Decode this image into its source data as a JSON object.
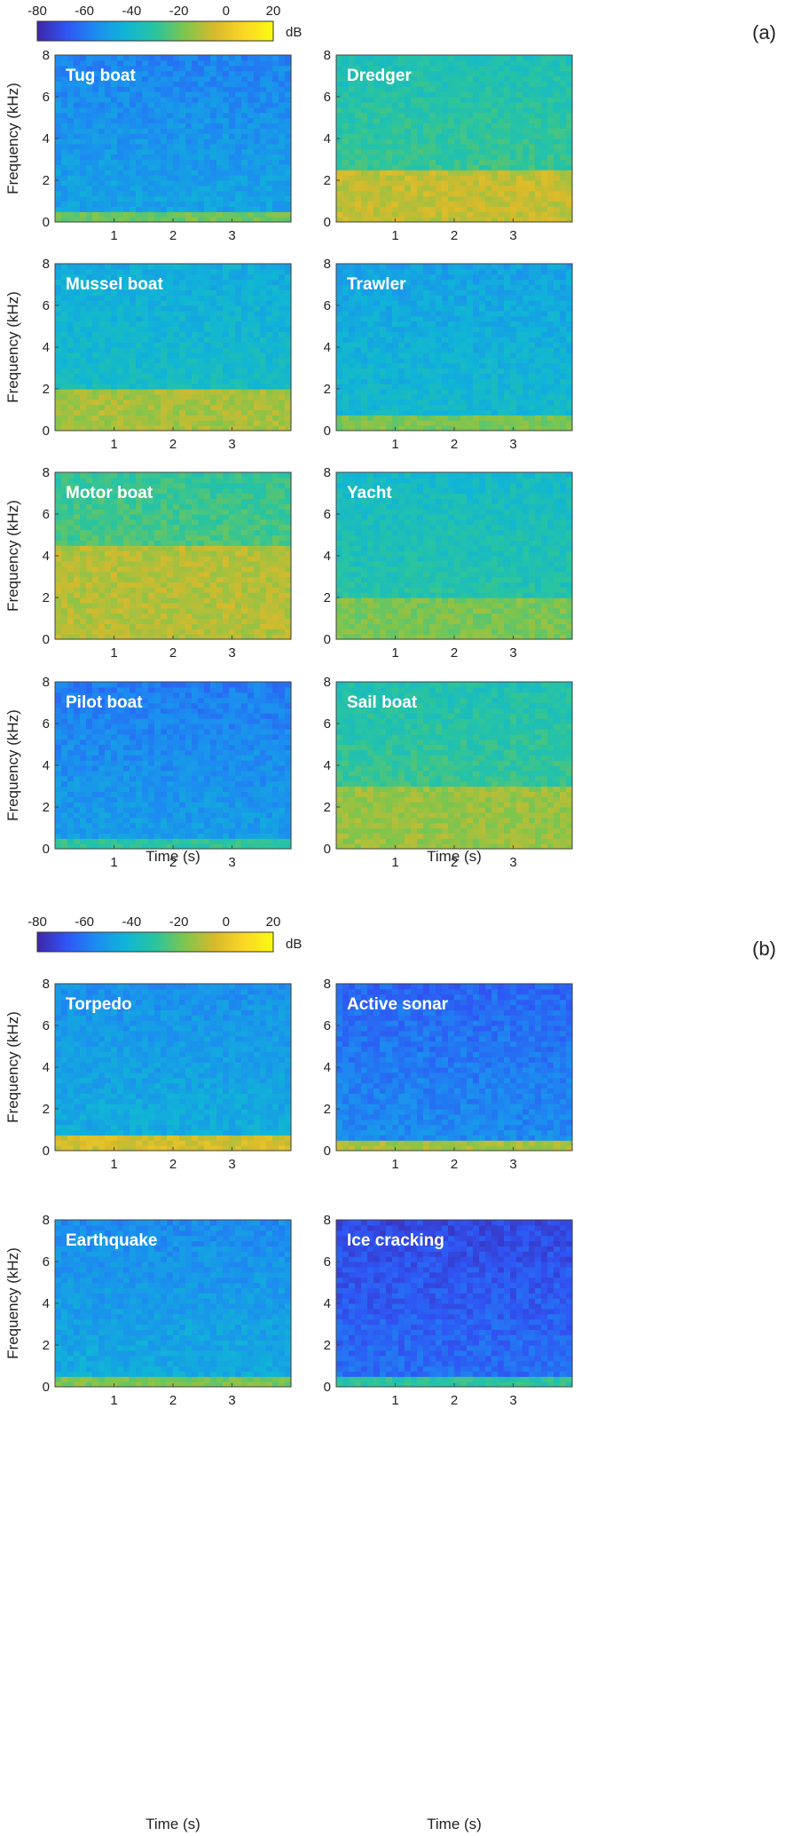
{
  "colormap": {
    "name": "parula",
    "stops": [
      "#3e26a8",
      "#2f55f4",
      "#1c8df0",
      "#10b5d6",
      "#29c4a0",
      "#7ec54d",
      "#d7ba2c",
      "#fbd626",
      "#f9fb0e"
    ]
  },
  "chart_data": [
    {
      "group": "(a)",
      "type": "heatmap",
      "colorbar": {
        "ticks": [
          "-80",
          "-60",
          "-40",
          "-20",
          "0",
          "20"
        ],
        "unit": "dB",
        "range": [
          -80,
          20
        ]
      },
      "xlabel": "Time (s)",
      "ylabel": "Frequency (kHz)",
      "x_ticks": [
        "1",
        "2",
        "3"
      ],
      "y_ticks": [
        "0",
        "2",
        "4",
        "6",
        "8"
      ],
      "xlim": [
        0,
        4
      ],
      "ylim": [
        0,
        8
      ],
      "spectrograms": [
        {
          "label": "Tug boat",
          "level_db": -48,
          "low_band_db": -20,
          "low_band_khz": 0.6
        },
        {
          "label": "Dredger",
          "level_db": -28,
          "low_band_db": -8,
          "low_band_khz": 2.5
        },
        {
          "label": "Mussel boat",
          "level_db": -38,
          "low_band_db": -12,
          "low_band_khz": 2.0
        },
        {
          "label": "Trawler",
          "level_db": -40,
          "low_band_db": -18,
          "low_band_khz": 0.8
        },
        {
          "label": "Motor boat",
          "level_db": -25,
          "low_band_db": -10,
          "low_band_khz": 4.5
        },
        {
          "label": "Yacht",
          "level_db": -32,
          "low_band_db": -18,
          "low_band_khz": 2.0
        },
        {
          "label": "Pilot boat",
          "level_db": -50,
          "low_band_db": -30,
          "low_band_khz": 0.5
        },
        {
          "label": "Sail boat",
          "level_db": -28,
          "low_band_db": -14,
          "low_band_khz": 3.0
        }
      ]
    },
    {
      "group": "(b)",
      "type": "heatmap",
      "colorbar": {
        "ticks": [
          "-80",
          "-60",
          "-40",
          "-20",
          "0",
          "20"
        ],
        "unit": "dB",
        "range": [
          -80,
          20
        ]
      },
      "xlabel": "Time (s)",
      "ylabel": "Frequency (kHz)",
      "x_ticks": [
        "1",
        "2",
        "3"
      ],
      "y_ticks": [
        "0",
        "2",
        "4",
        "6",
        "8"
      ],
      "xlim": [
        0,
        4
      ],
      "ylim": [
        0,
        8
      ],
      "spectrograms": [
        {
          "label": "Torpedo",
          "level_db": -45,
          "low_band_db": -5,
          "low_band_khz": 0.8
        },
        {
          "label": "Active sonar",
          "level_db": -55,
          "low_band_db": -12,
          "low_band_khz": 0.6
        },
        {
          "label": "Earthquake",
          "level_db": -46,
          "low_band_db": -18,
          "low_band_khz": 0.5
        },
        {
          "label": "Ice cracking",
          "level_db": -62,
          "low_band_db": -30,
          "low_band_khz": 0.6
        }
      ]
    }
  ]
}
